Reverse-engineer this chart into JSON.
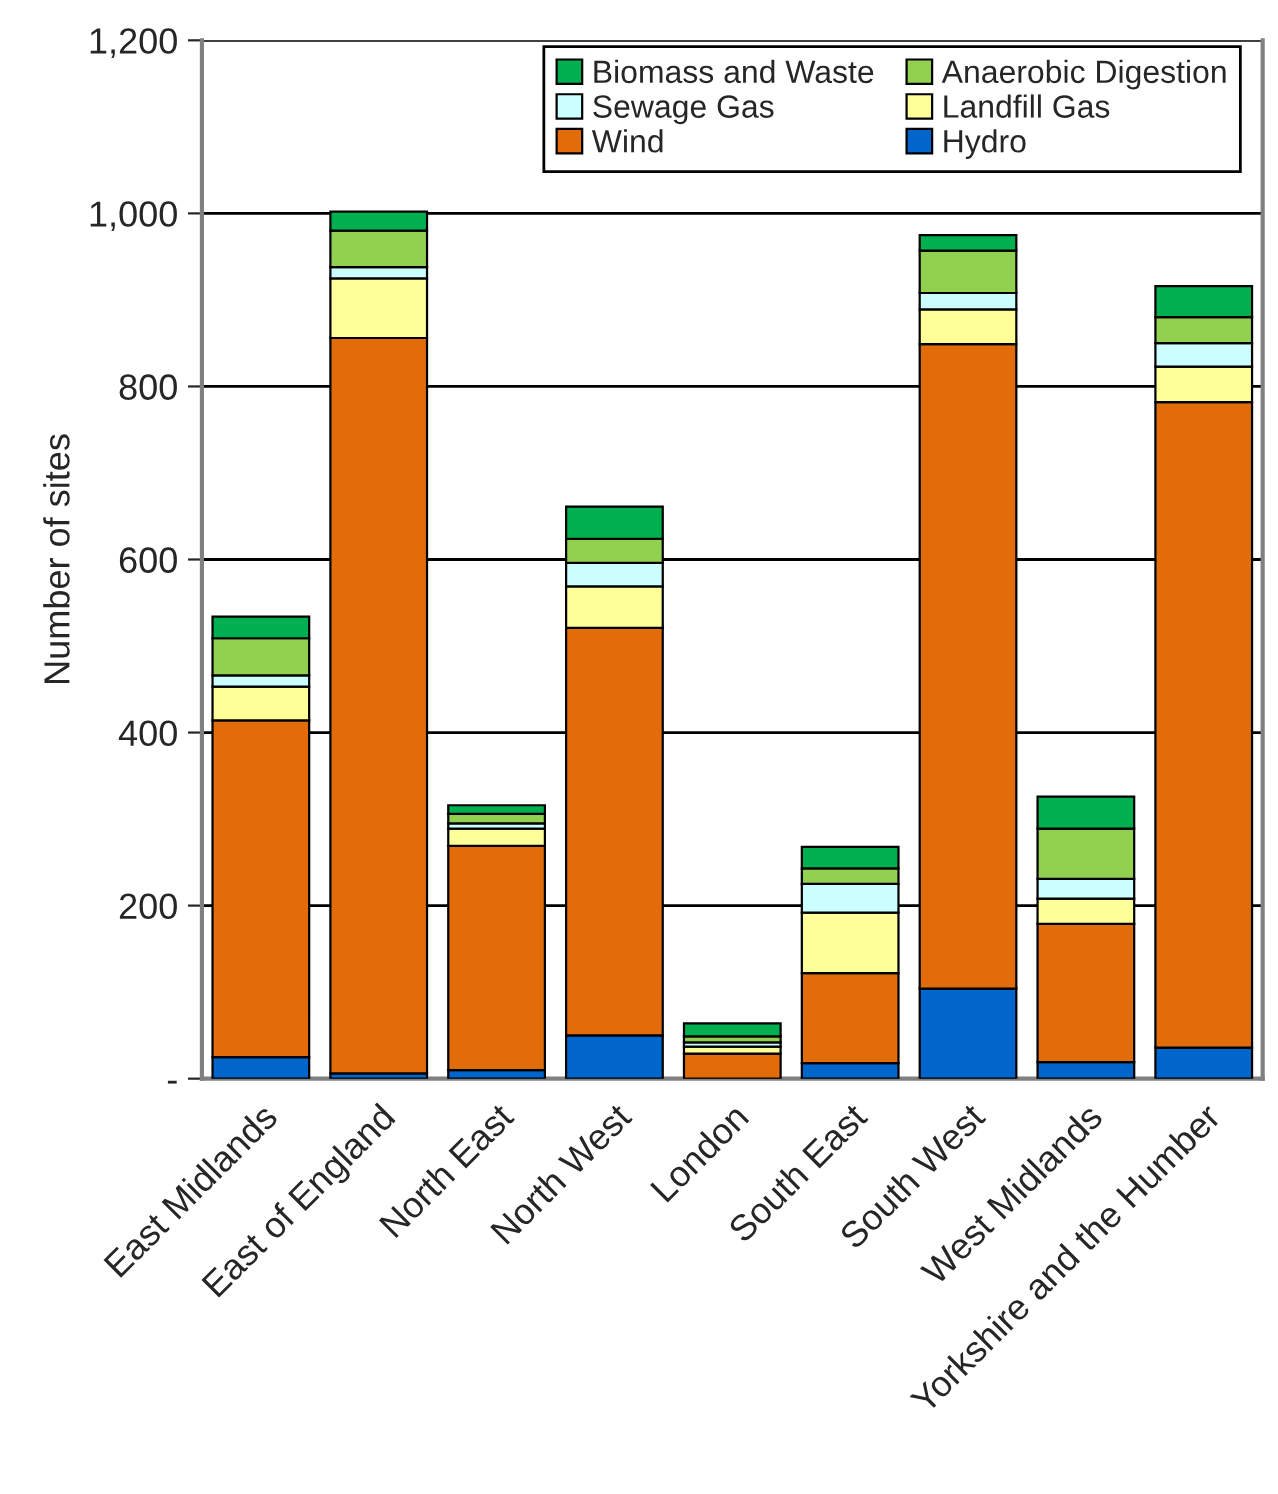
{
  "chart_data": {
    "type": "bar",
    "stacked": true,
    "ylabel": "Number of sites",
    "categories": [
      "East Midlands",
      "East of England",
      "North East",
      "North West",
      "London",
      "South East",
      "South West",
      "West Midlands",
      "Yorkshire and the Humber"
    ],
    "series": [
      {
        "name": "Hydro",
        "color": "#0066cc",
        "values": [
          25,
          6,
          10,
          50,
          0,
          18,
          104,
          19,
          36
        ]
      },
      {
        "name": "Wind",
        "color": "#e36c0a",
        "values": [
          389,
          850,
          259,
          471,
          29,
          104,
          745,
          160,
          746
        ]
      },
      {
        "name": "Landfill Gas",
        "color": "#ffff99",
        "values": [
          39,
          69,
          20,
          48,
          8,
          70,
          40,
          29,
          41
        ]
      },
      {
        "name": "Sewage Gas",
        "color": "#ccffff",
        "values": [
          13,
          13,
          6,
          27,
          5,
          33,
          19,
          23,
          27
        ]
      },
      {
        "name": "Anaerobic Digestion",
        "color": "#92d050",
        "values": [
          43,
          42,
          11,
          28,
          7,
          18,
          49,
          58,
          30
        ]
      },
      {
        "name": "Biomass and Waste",
        "color": "#00b050",
        "values": [
          25,
          22,
          10,
          37,
          15,
          25,
          18,
          37,
          36
        ]
      }
    ],
    "ylim": [
      0,
      1200
    ],
    "yticks": [
      {
        "value": 0,
        "label": "-"
      },
      200,
      400,
      600,
      800,
      {
        "value": 1000,
        "label": "1,000"
      },
      {
        "value": 1200,
        "label": "1,200"
      }
    ],
    "grid": "y",
    "legend": "top right"
  }
}
